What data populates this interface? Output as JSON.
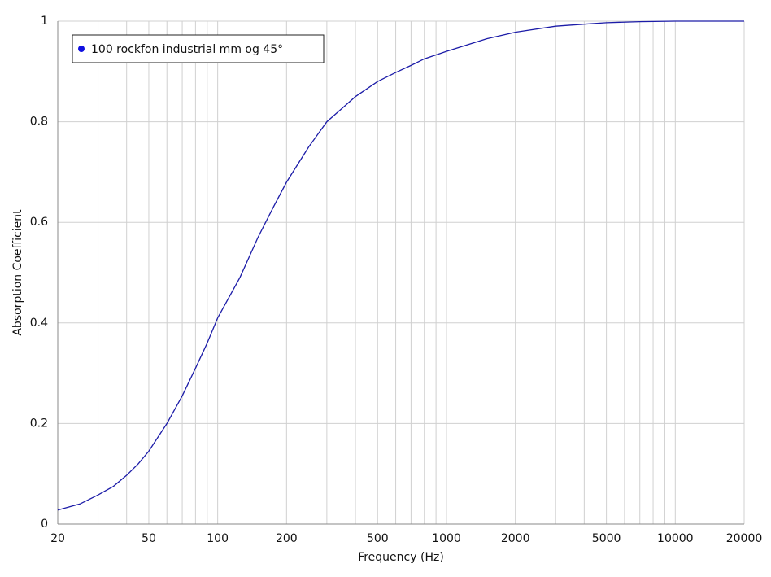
{
  "chart_data": {
    "type": "line",
    "x_label": "Frequency (Hz)",
    "y_label": "Absorption Coefficient",
    "x": [
      20,
      25,
      30,
      35,
      40,
      45,
      50,
      60,
      70,
      80,
      90,
      100,
      125,
      150,
      175,
      200,
      250,
      300,
      400,
      500,
      600,
      700,
      800,
      1000,
      1500,
      2000,
      3000,
      4000,
      5000,
      7000,
      10000,
      20000
    ],
    "series": [
      {
        "name": "100 rockfon industrial mm og 45°",
        "color": "#1c1ca8",
        "values": [
          0.028,
          0.04,
          0.058,
          0.075,
          0.097,
          0.12,
          0.145,
          0.2,
          0.255,
          0.31,
          0.36,
          0.41,
          0.49,
          0.57,
          0.63,
          0.68,
          0.75,
          0.8,
          0.85,
          0.88,
          0.898,
          0.912,
          0.925,
          0.94,
          0.965,
          0.978,
          0.99,
          0.994,
          0.997,
          0.999,
          1,
          1
        ]
      }
    ],
    "xlim": [
      20,
      20000
    ],
    "ylim": [
      0,
      1
    ],
    "xlog": true,
    "xticks": [
      20,
      50,
      100,
      200,
      500,
      1000,
      2000,
      5000,
      10000,
      20000
    ],
    "x_minor_grid": [
      30,
      40,
      60,
      70,
      80,
      90,
      300,
      400,
      600,
      700,
      800,
      900,
      3000,
      4000,
      6000,
      7000,
      8000,
      9000
    ],
    "yticks": [
      0,
      0.2,
      0.4,
      0.6,
      0.8,
      1
    ],
    "grid": true,
    "legend": "top-left"
  }
}
